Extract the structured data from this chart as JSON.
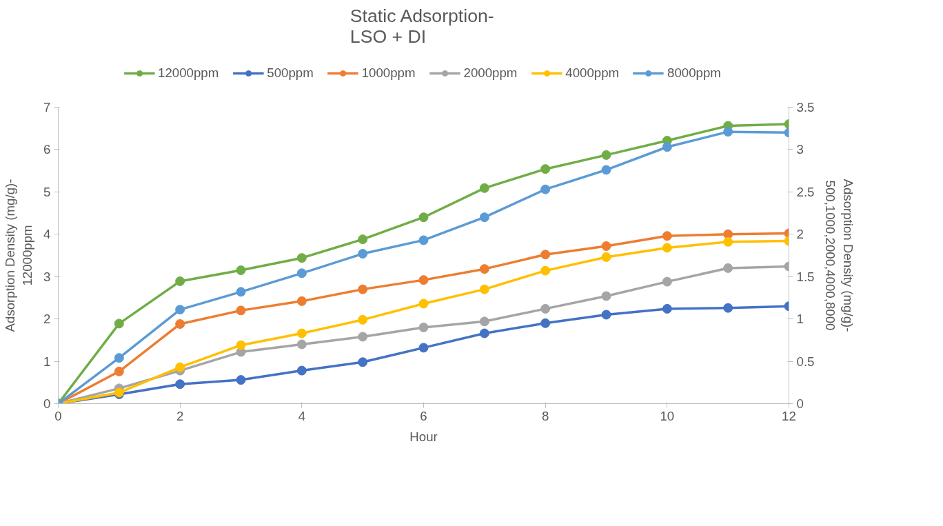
{
  "chart_data": {
    "type": "line",
    "title": "Static Adsorption-\nLSO + DI",
    "xlabel": "Hour",
    "ylabel": "Adsorption Density (mg/g)-\n12000ppm",
    "y2label": "Adsorption Density (mg/g)-\n500,1000,2000,4000,8000",
    "x": [
      0,
      1,
      2,
      3,
      4,
      5,
      6,
      7,
      8,
      9,
      10,
      11,
      12
    ],
    "xlim": [
      0,
      12
    ],
    "xticks": [
      0,
      2,
      4,
      6,
      8,
      10,
      12
    ],
    "ylim": [
      0,
      7
    ],
    "yticks": [
      0,
      1,
      2,
      3,
      4,
      5,
      6,
      7
    ],
    "y2lim": [
      0,
      3.5
    ],
    "y2ticks": [
      0,
      0.5,
      1,
      1.5,
      2,
      2.5,
      3,
      3.5
    ],
    "grid": false,
    "legend": "top",
    "marker": "circle",
    "line_style": "solid",
    "series": [
      {
        "name": "12000ppm",
        "color": "#70ad47",
        "values": [
          0,
          1.89,
          2.89,
          3.15,
          3.44,
          3.88,
          4.4,
          5.09,
          5.54,
          5.87,
          6.21,
          6.56,
          6.6
        ]
      },
      {
        "name": "500ppm",
        "color": "#4472c4",
        "axis": "y2",
        "values": [
          0,
          0.11,
          0.23,
          0.28,
          0.39,
          0.49,
          0.66,
          0.83,
          0.95,
          1.05,
          1.12,
          1.13,
          1.15
        ]
      },
      {
        "name": "1000ppm",
        "color": "#ed7d31",
        "axis": "y2",
        "values": [
          0,
          0.38,
          0.94,
          1.1,
          1.21,
          1.35,
          1.46,
          1.59,
          1.76,
          1.86,
          1.98,
          2.0,
          2.01
        ]
      },
      {
        "name": "2000ppm",
        "color": "#a5a5a5",
        "axis": "y2",
        "values": [
          0,
          0.18,
          0.39,
          0.61,
          0.7,
          0.79,
          0.9,
          0.97,
          1.12,
          1.27,
          1.44,
          1.6,
          1.62
        ]
      },
      {
        "name": "4000ppm",
        "color": "#ffc000",
        "axis": "y2",
        "values": [
          0,
          0.13,
          0.43,
          0.69,
          0.83,
          0.99,
          1.18,
          1.35,
          1.57,
          1.73,
          1.84,
          1.91,
          1.92
        ]
      },
      {
        "name": "8000ppm",
        "color": "#5b9bd5",
        "axis": "y2",
        "values": [
          0,
          0.54,
          1.11,
          1.32,
          1.54,
          1.77,
          1.93,
          2.2,
          2.53,
          2.76,
          3.03,
          3.21,
          3.2
        ]
      }
    ]
  }
}
